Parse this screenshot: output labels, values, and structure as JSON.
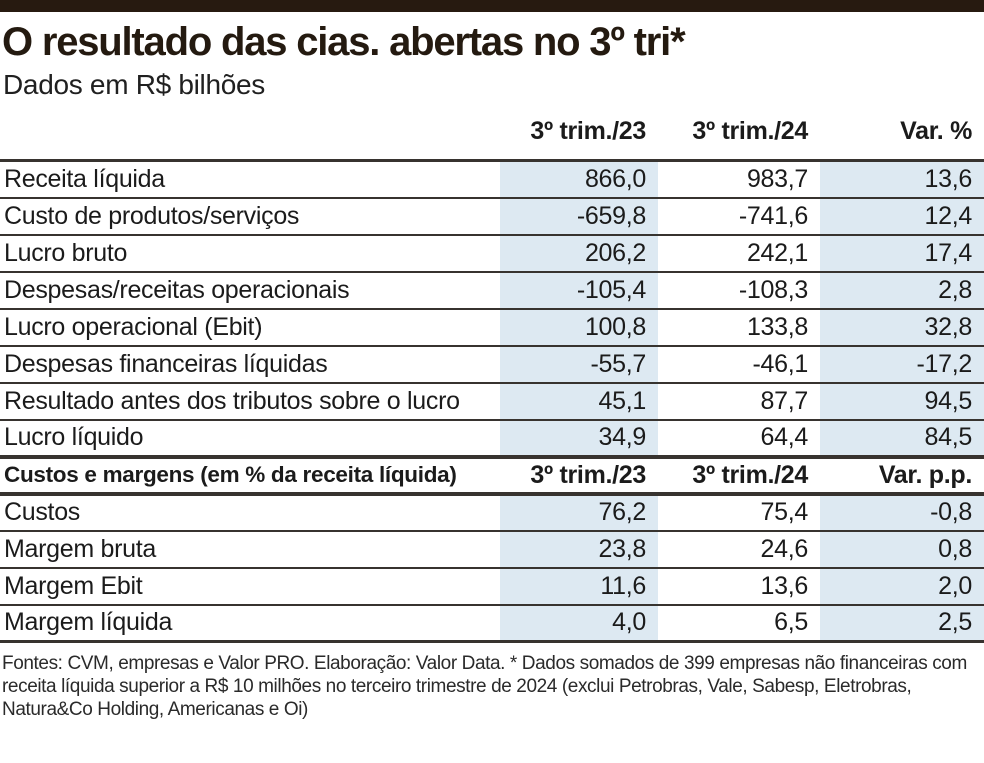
{
  "colors": {
    "top_bar": "#271a10",
    "title_text": "#241a10",
    "shade_blue": "#dde9f2",
    "line_dark": "#37332f"
  },
  "chart_data": {
    "type": "table",
    "title": "O resultado das cias. abertas no 3º tri*",
    "subtitle": "Dados em R$ bilhões",
    "layout": {
      "shaded_columns": [
        "3º trim./23",
        "Var. %"
      ],
      "shade_color": "#dde9f2",
      "grid": "horizontal rules between rows"
    },
    "sections": [
      {
        "header": [
          "",
          "3º trim./23",
          "3º trim./24",
          "Var. %"
        ],
        "rows": [
          [
            "Receita líquida",
            "866,0",
            "983,7",
            "13,6"
          ],
          [
            "Custo de produtos/serviços",
            "-659,8",
            "-741,6",
            "12,4"
          ],
          [
            "Lucro bruto",
            "206,2",
            "242,1",
            "17,4"
          ],
          [
            "Despesas/receitas operacionais",
            "-105,4",
            "-108,3",
            "2,8"
          ],
          [
            "Lucro operacional (Ebit)",
            "100,8",
            "133,8",
            "32,8"
          ],
          [
            "Despesas financeiras líquidas",
            "-55,7",
            "-46,1",
            "-17,2"
          ],
          [
            "Resultado antes dos tributos sobre o lucro",
            "45,1",
            "87,7",
            "94,5"
          ],
          [
            "Lucro líquido",
            "34,9",
            "64,4",
            "84,5"
          ]
        ]
      },
      {
        "header": [
          "Custos e margens (em % da receita líquida)",
          "3º trim./23",
          "3º trim./24",
          "Var. p.p."
        ],
        "rows": [
          [
            "Custos",
            "76,2",
            "75,4",
            "-0,8"
          ],
          [
            "Margem bruta",
            "23,8",
            "24,6",
            "0,8"
          ],
          [
            "Margem Ebit",
            "11,6",
            "13,6",
            "2,0"
          ],
          [
            "Margem líquida",
            "4,0",
            "6,5",
            "2,5"
          ]
        ]
      }
    ],
    "footer": "Fontes: CVM, empresas e Valor PRO. Elaboração: Valor Data. * Dados somados de 399 empresas não financeiras com receita líquida superior a R$ 10 milhões no terceiro trimestre de 2024 (exclui Petrobras, Vale, Sabesp, Eletrobras, Natura&Co Holding, Americanas e Oi)"
  }
}
